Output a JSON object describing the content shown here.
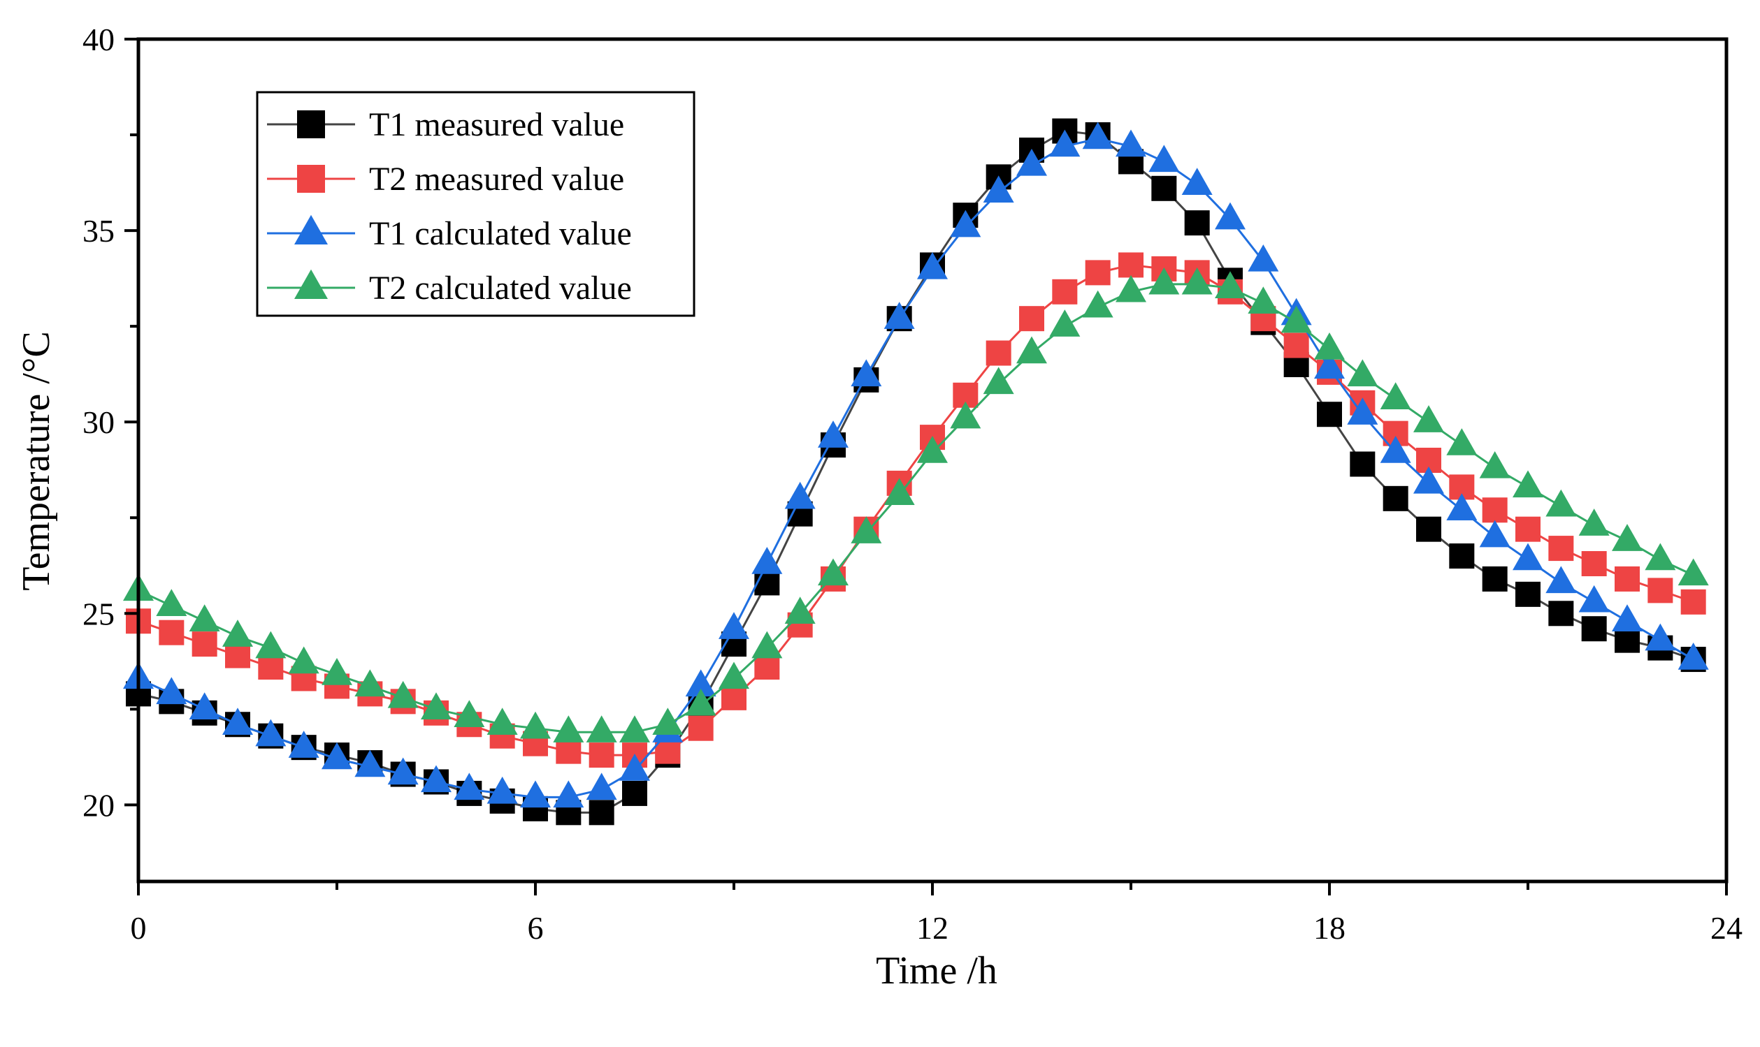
{
  "chart_data": {
    "type": "line",
    "title": "",
    "xlabel": "Time /h",
    "ylabel": "Temperature /°C",
    "xlim": [
      0,
      24
    ],
    "ylim": [
      18,
      40
    ],
    "x_ticks": [
      0,
      6,
      12,
      18,
      24
    ],
    "x_minor_ticks": [
      3,
      9,
      15,
      21
    ],
    "y_ticks": [
      20,
      25,
      30,
      35,
      40
    ],
    "y_minor_ticks": [
      22.5,
      27.5,
      32.5,
      37.5
    ],
    "grid": false,
    "legend_position": "top-left",
    "x": [
      0,
      0.5,
      1,
      1.5,
      2,
      2.5,
      3,
      3.5,
      4,
      4.5,
      5,
      5.5,
      6,
      6.5,
      7,
      7.5,
      8,
      8.5,
      9,
      9.5,
      10,
      10.5,
      11,
      11.5,
      12,
      12.5,
      13,
      13.5,
      14,
      14.5,
      15,
      15.5,
      16,
      16.5,
      17,
      17.5,
      18,
      18.5,
      19,
      19.5,
      20,
      20.5,
      21,
      21.5,
      22,
      22.5,
      23,
      23.5
    ],
    "series": [
      {
        "name": "T1 measured value",
        "color": "#000000",
        "line_color": "#444444",
        "marker": "square",
        "values": [
          22.9,
          22.7,
          22.4,
          22.1,
          21.8,
          21.5,
          21.3,
          21.1,
          20.8,
          20.6,
          20.3,
          20.1,
          19.9,
          19.8,
          19.8,
          20.3,
          21.3,
          22.6,
          24.2,
          25.8,
          27.6,
          29.4,
          31.1,
          32.7,
          34.1,
          35.4,
          36.4,
          37.1,
          37.6,
          37.5,
          36.8,
          36.1,
          35.2,
          33.7,
          32.6,
          31.5,
          30.2,
          28.9,
          28.0,
          27.2,
          26.5,
          25.9,
          25.5,
          25.0,
          24.6,
          24.3,
          24.1,
          23.8
        ]
      },
      {
        "name": "T2 measured value",
        "color": "#ee4444",
        "line_color": "#ee4444",
        "marker": "square",
        "values": [
          24.8,
          24.5,
          24.2,
          23.9,
          23.6,
          23.3,
          23.1,
          22.9,
          22.7,
          22.4,
          22.1,
          21.8,
          21.6,
          21.4,
          21.3,
          21.3,
          21.4,
          22.0,
          22.8,
          23.6,
          24.7,
          25.9,
          27.2,
          28.4,
          29.6,
          30.7,
          31.8,
          32.7,
          33.4,
          33.9,
          34.1,
          34.0,
          33.9,
          33.4,
          32.7,
          32.0,
          31.3,
          30.5,
          29.7,
          29.0,
          28.3,
          27.7,
          27.2,
          26.7,
          26.3,
          25.9,
          25.6,
          25.3
        ]
      },
      {
        "name": "T1 calculated value",
        "color": "#1f6fe0",
        "line_color": "#1f6fe0",
        "marker": "triangle",
        "values": [
          23.3,
          22.9,
          22.5,
          22.1,
          21.8,
          21.5,
          21.2,
          21.0,
          20.8,
          20.6,
          20.4,
          20.3,
          20.2,
          20.2,
          20.4,
          20.9,
          21.9,
          23.1,
          24.6,
          26.3,
          28.0,
          29.6,
          31.2,
          32.7,
          34.0,
          35.1,
          36.0,
          36.7,
          37.2,
          37.4,
          37.2,
          36.8,
          36.2,
          35.3,
          34.2,
          32.8,
          31.4,
          30.2,
          29.2,
          28.4,
          27.7,
          27.0,
          26.4,
          25.8,
          25.3,
          24.8,
          24.3,
          23.8
        ]
      },
      {
        "name": "T2 calculated value",
        "color": "#33aa66",
        "line_color": "#33aa66",
        "marker": "triangle",
        "values": [
          25.6,
          25.2,
          24.8,
          24.4,
          24.1,
          23.7,
          23.4,
          23.1,
          22.8,
          22.5,
          22.3,
          22.1,
          22.0,
          21.9,
          21.9,
          21.9,
          22.1,
          22.6,
          23.3,
          24.1,
          25.0,
          26.0,
          27.1,
          28.1,
          29.2,
          30.1,
          31.0,
          31.8,
          32.5,
          33.0,
          33.4,
          33.6,
          33.6,
          33.5,
          33.1,
          32.6,
          31.9,
          31.2,
          30.6,
          30.0,
          29.4,
          28.8,
          28.3,
          27.8,
          27.3,
          26.9,
          26.4,
          26.0
        ]
      }
    ]
  }
}
